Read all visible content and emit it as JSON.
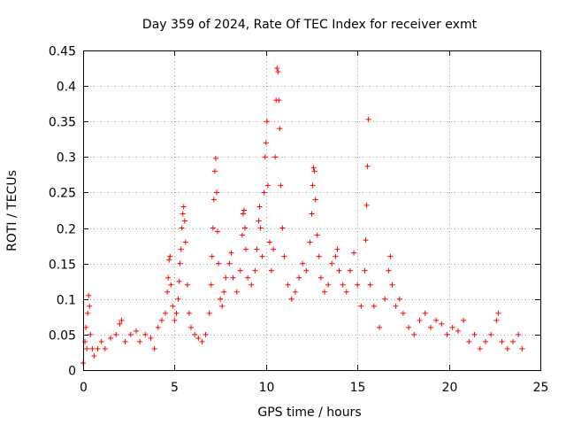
{
  "chart_data": {
    "type": "scatter",
    "title": "Day 359 of 2024, Rate Of TEC Index for receiver exmt",
    "xlabel": "GPS time / hours",
    "ylabel": "ROTI / TECUs",
    "xlim": [
      0,
      25
    ],
    "ylim": [
      0,
      0.45
    ],
    "xticks": [
      0,
      5,
      10,
      15,
      20,
      25
    ],
    "yticks": [
      0,
      0.05,
      0.1,
      0.15,
      0.2,
      0.25,
      0.3,
      0.35,
      0.4,
      0.45
    ],
    "xtick_labels": [
      "0",
      "5",
      "10",
      "15",
      "20",
      "25"
    ],
    "ytick_labels": [
      "0",
      "0.05",
      "0.1",
      "0.15",
      "0.2",
      "0.25",
      "0.3",
      "0.35",
      "0.4",
      "0.45"
    ],
    "grid": true,
    "marker": "+",
    "color": "#ff0000",
    "series": [
      {
        "name": "ROTI",
        "points": [
          [
            0.0,
            0.01
          ],
          [
            0.1,
            0.04
          ],
          [
            0.15,
            0.06
          ],
          [
            0.2,
            0.03
          ],
          [
            0.25,
            0.08
          ],
          [
            0.3,
            0.105
          ],
          [
            0.35,
            0.09
          ],
          [
            0.4,
            0.05
          ],
          [
            0.5,
            0.03
          ],
          [
            0.6,
            0.02
          ],
          [
            0.8,
            0.03
          ],
          [
            1.0,
            0.04
          ],
          [
            1.2,
            0.03
          ],
          [
            1.5,
            0.045
          ],
          [
            1.8,
            0.05
          ],
          [
            2.0,
            0.065
          ],
          [
            2.1,
            0.07
          ],
          [
            2.3,
            0.04
          ],
          [
            2.6,
            0.05
          ],
          [
            2.9,
            0.055
          ],
          [
            3.1,
            0.04
          ],
          [
            3.4,
            0.05
          ],
          [
            3.7,
            0.045
          ],
          [
            3.9,
            0.03
          ],
          [
            4.1,
            0.06
          ],
          [
            4.3,
            0.07
          ],
          [
            4.5,
            0.08
          ],
          [
            4.6,
            0.11
          ],
          [
            4.65,
            0.13
          ],
          [
            4.7,
            0.155
          ],
          [
            4.75,
            0.16
          ],
          [
            4.8,
            0.12
          ],
          [
            4.9,
            0.09
          ],
          [
            5.0,
            0.07
          ],
          [
            5.1,
            0.08
          ],
          [
            5.2,
            0.1
          ],
          [
            5.25,
            0.125
          ],
          [
            5.3,
            0.15
          ],
          [
            5.35,
            0.17
          ],
          [
            5.4,
            0.2
          ],
          [
            5.45,
            0.22
          ],
          [
            5.5,
            0.23
          ],
          [
            5.55,
            0.21
          ],
          [
            5.6,
            0.18
          ],
          [
            5.7,
            0.12
          ],
          [
            5.8,
            0.08
          ],
          [
            5.9,
            0.06
          ],
          [
            6.1,
            0.05
          ],
          [
            6.3,
            0.045
          ],
          [
            6.5,
            0.04
          ],
          [
            6.7,
            0.05
          ],
          [
            6.9,
            0.08
          ],
          [
            7.0,
            0.12
          ],
          [
            7.05,
            0.16
          ],
          [
            7.1,
            0.2
          ],
          [
            7.15,
            0.24
          ],
          [
            7.2,
            0.28
          ],
          [
            7.25,
            0.298
          ],
          [
            7.3,
            0.25
          ],
          [
            7.35,
            0.195
          ],
          [
            7.4,
            0.15
          ],
          [
            7.5,
            0.1
          ],
          [
            7.6,
            0.09
          ],
          [
            7.7,
            0.11
          ],
          [
            7.8,
            0.13
          ],
          [
            8.0,
            0.15
          ],
          [
            8.1,
            0.165
          ],
          [
            8.2,
            0.13
          ],
          [
            8.4,
            0.11
          ],
          [
            8.6,
            0.14
          ],
          [
            8.7,
            0.19
          ],
          [
            8.75,
            0.22
          ],
          [
            8.8,
            0.225
          ],
          [
            8.85,
            0.2
          ],
          [
            8.9,
            0.17
          ],
          [
            9.0,
            0.13
          ],
          [
            9.2,
            0.12
          ],
          [
            9.4,
            0.14
          ],
          [
            9.5,
            0.17
          ],
          [
            9.6,
            0.21
          ],
          [
            9.65,
            0.23
          ],
          [
            9.7,
            0.2
          ],
          [
            9.8,
            0.16
          ],
          [
            9.9,
            0.25
          ],
          [
            9.95,
            0.3
          ],
          [
            10.0,
            0.32
          ],
          [
            10.05,
            0.35
          ],
          [
            10.1,
            0.26
          ],
          [
            10.2,
            0.18
          ],
          [
            10.3,
            0.14
          ],
          [
            10.4,
            0.17
          ],
          [
            10.5,
            0.3
          ],
          [
            10.55,
            0.38
          ],
          [
            10.6,
            0.425
          ],
          [
            10.65,
            0.42
          ],
          [
            10.7,
            0.38
          ],
          [
            10.75,
            0.34
          ],
          [
            10.8,
            0.26
          ],
          [
            10.9,
            0.2
          ],
          [
            11.0,
            0.16
          ],
          [
            11.2,
            0.12
          ],
          [
            11.4,
            0.1
          ],
          [
            11.6,
            0.11
          ],
          [
            11.8,
            0.13
          ],
          [
            12.0,
            0.15
          ],
          [
            12.2,
            0.14
          ],
          [
            12.4,
            0.18
          ],
          [
            12.5,
            0.22
          ],
          [
            12.55,
            0.26
          ],
          [
            12.6,
            0.285
          ],
          [
            12.65,
            0.28
          ],
          [
            12.7,
            0.24
          ],
          [
            12.8,
            0.19
          ],
          [
            12.9,
            0.16
          ],
          [
            13.0,
            0.13
          ],
          [
            13.2,
            0.11
          ],
          [
            13.4,
            0.12
          ],
          [
            13.6,
            0.15
          ],
          [
            13.8,
            0.16
          ],
          [
            13.9,
            0.17
          ],
          [
            14.0,
            0.14
          ],
          [
            14.2,
            0.12
          ],
          [
            14.4,
            0.11
          ],
          [
            14.6,
            0.14
          ],
          [
            14.8,
            0.165
          ],
          [
            15.0,
            0.12
          ],
          [
            15.2,
            0.09
          ],
          [
            15.4,
            0.14
          ],
          [
            15.45,
            0.183
          ],
          [
            15.5,
            0.232
          ],
          [
            15.55,
            0.287
          ],
          [
            15.6,
            0.353
          ],
          [
            15.7,
            0.12
          ],
          [
            15.9,
            0.09
          ],
          [
            16.2,
            0.06
          ],
          [
            16.5,
            0.1
          ],
          [
            16.7,
            0.14
          ],
          [
            16.8,
            0.16
          ],
          [
            16.9,
            0.12
          ],
          [
            17.1,
            0.09
          ],
          [
            17.3,
            0.1
          ],
          [
            17.5,
            0.08
          ],
          [
            17.8,
            0.06
          ],
          [
            18.1,
            0.05
          ],
          [
            18.4,
            0.07
          ],
          [
            18.7,
            0.08
          ],
          [
            19.0,
            0.06
          ],
          [
            19.3,
            0.07
          ],
          [
            19.6,
            0.065
          ],
          [
            19.9,
            0.05
          ],
          [
            20.2,
            0.06
          ],
          [
            20.5,
            0.055
          ],
          [
            20.8,
            0.07
          ],
          [
            21.1,
            0.04
          ],
          [
            21.4,
            0.05
          ],
          [
            21.7,
            0.03
          ],
          [
            22.0,
            0.04
          ],
          [
            22.3,
            0.05
          ],
          [
            22.6,
            0.07
          ],
          [
            22.7,
            0.08
          ],
          [
            22.9,
            0.04
          ],
          [
            23.2,
            0.03
          ],
          [
            23.5,
            0.04
          ],
          [
            23.8,
            0.05
          ],
          [
            24.0,
            0.03
          ]
        ]
      }
    ]
  }
}
